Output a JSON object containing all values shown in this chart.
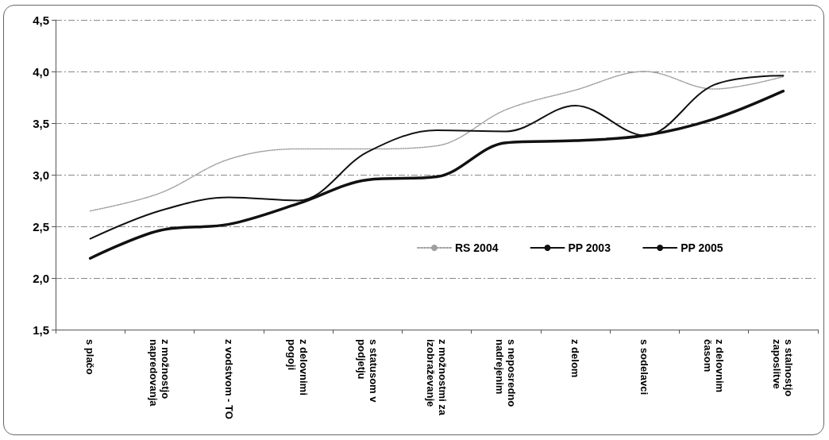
{
  "chart_data": {
    "type": "line",
    "categories": [
      "s plačo",
      "z možnostjo napredovanja",
      "z vodstvom - TO",
      "z delovnimi pogoji",
      "s statusom v podjetju",
      "z možnostmi za izobraževanje",
      "s neposredno nadrejenim",
      "z delom",
      "s sodelavci",
      "z delovnim časom",
      "s stalnostjo zaposlitve"
    ],
    "series": [
      {
        "name": "RS 2004",
        "color": "#a0a0a0",
        "line_style": "dotted",
        "values": [
          2.65,
          2.82,
          3.15,
          3.25,
          3.25,
          3.28,
          3.63,
          3.82,
          4.0,
          3.83,
          3.95
        ]
      },
      {
        "name": "PP 2003",
        "color": "#111111",
        "line_style": "solid",
        "values": [
          2.38,
          2.65,
          2.78,
          2.75,
          3.22,
          3.43,
          3.42,
          3.67,
          3.38,
          3.87,
          3.96
        ]
      },
      {
        "name": "PP 2005",
        "color": "#111111",
        "line_style": "solid",
        "values": [
          2.19,
          2.46,
          2.52,
          2.72,
          2.95,
          2.98,
          3.31,
          3.33,
          3.38,
          3.54,
          3.81
        ]
      }
    ],
    "ylim": [
      1.5,
      4.5
    ],
    "yticks": [
      {
        "value": 1.5,
        "label": "1,5"
      },
      {
        "value": 2.0,
        "label": "2,0"
      },
      {
        "value": 2.5,
        "label": "2,5"
      },
      {
        "value": 3.0,
        "label": "3,0"
      },
      {
        "value": 3.5,
        "label": "3,5"
      },
      {
        "value": 4.0,
        "label": "4,0"
      },
      {
        "value": 4.5,
        "label": "4,5"
      }
    ],
    "grid": "y",
    "legend": "right",
    "marker": "none"
  }
}
